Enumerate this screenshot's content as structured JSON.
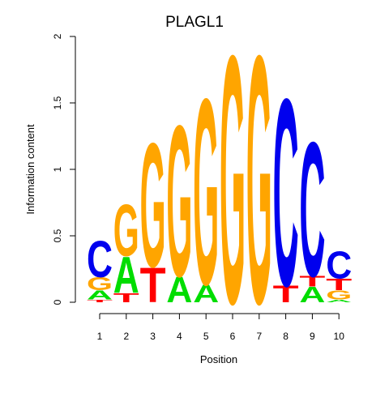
{
  "chart_data": {
    "type": "sequence-logo",
    "title": "PLAGL1",
    "xlabel": "Position",
    "ylabel": "Information content",
    "ylim": [
      0,
      2
    ],
    "yticks": [
      "0",
      "0.5",
      "1",
      "1.5",
      "2"
    ],
    "positions": [
      "1",
      "2",
      "3",
      "4",
      "5",
      "6",
      "7",
      "8",
      "9",
      "10"
    ],
    "colors": {
      "A": "#00dd00",
      "C": "#0000ee",
      "G": "#ffa500",
      "T": "#ff0000"
    },
    "stacks": [
      [
        {
          "letter": "T",
          "bits": 0.02
        },
        {
          "letter": "A",
          "bits": 0.07
        },
        {
          "letter": "G",
          "bits": 0.1
        },
        {
          "letter": "C",
          "bits": 0.28
        }
      ],
      [
        {
          "letter": "T",
          "bits": 0.07
        },
        {
          "letter": "A",
          "bits": 0.28
        },
        {
          "letter": "G",
          "bits": 0.4
        }
      ],
      [
        {
          "letter": "T",
          "bits": 0.27
        },
        {
          "letter": "G",
          "bits": 0.96
        }
      ],
      [
        {
          "letter": "A",
          "bits": 0.2
        },
        {
          "letter": "G",
          "bits": 1.17
        }
      ],
      [
        {
          "letter": "A",
          "bits": 0.14
        },
        {
          "letter": "G",
          "bits": 1.44
        }
      ],
      [
        {
          "letter": "G",
          "bits": 1.92
        }
      ],
      [
        {
          "letter": "G",
          "bits": 1.92
        }
      ],
      [
        {
          "letter": "T",
          "bits": 0.13
        },
        {
          "letter": "C",
          "bits": 1.45
        }
      ],
      [
        {
          "letter": "A",
          "bits": 0.12
        },
        {
          "letter": "T",
          "bits": 0.08
        },
        {
          "letter": "C",
          "bits": 1.04
        }
      ],
      [
        {
          "letter": "A",
          "bits": 0.02
        },
        {
          "letter": "G",
          "bits": 0.07
        },
        {
          "letter": "T",
          "bits": 0.09
        },
        {
          "letter": "C",
          "bits": 0.21
        }
      ]
    ]
  }
}
